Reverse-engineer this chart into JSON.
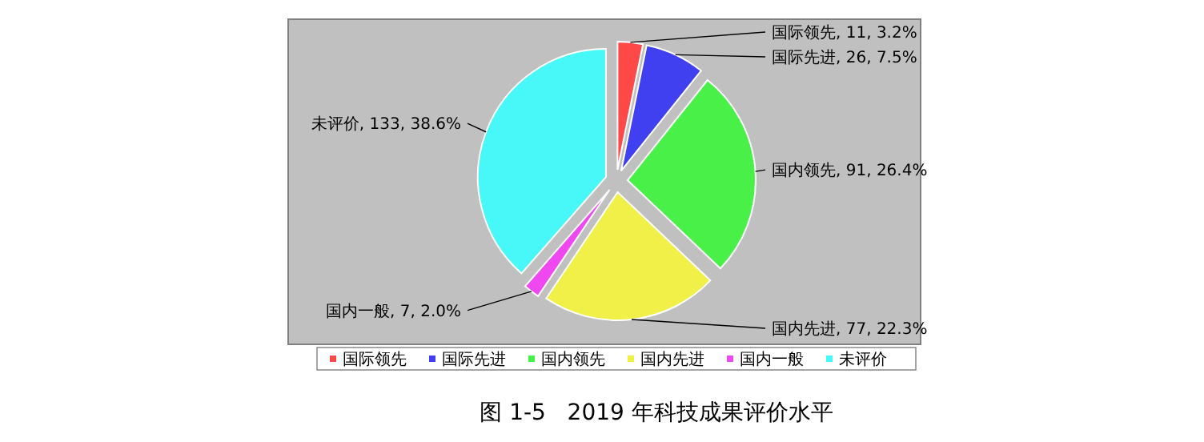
{
  "chart_data": {
    "type": "pie",
    "title": "图 1-5   2019 年科技成果评价水平",
    "categories": [
      "国际领先",
      "国际先进",
      "国内领先",
      "国内先进",
      "国内一般",
      "未评价"
    ],
    "values": [
      11,
      26,
      91,
      77,
      7,
      133
    ],
    "colors": [
      "#ff4848",
      "#4040f0",
      "#48f048",
      "#f0f048",
      "#f048f0",
      "#48f8f8"
    ],
    "value_labels": [
      "国际领先, 11, 3.2%",
      "国际先进, 26, 7.5%",
      "国内领先, 91, 26.4%",
      "国内先进, 77, 22.3%",
      "国内一般, 7, 2.0%",
      "未评价, 133, 38.6%"
    ],
    "legend": "bottom"
  }
}
